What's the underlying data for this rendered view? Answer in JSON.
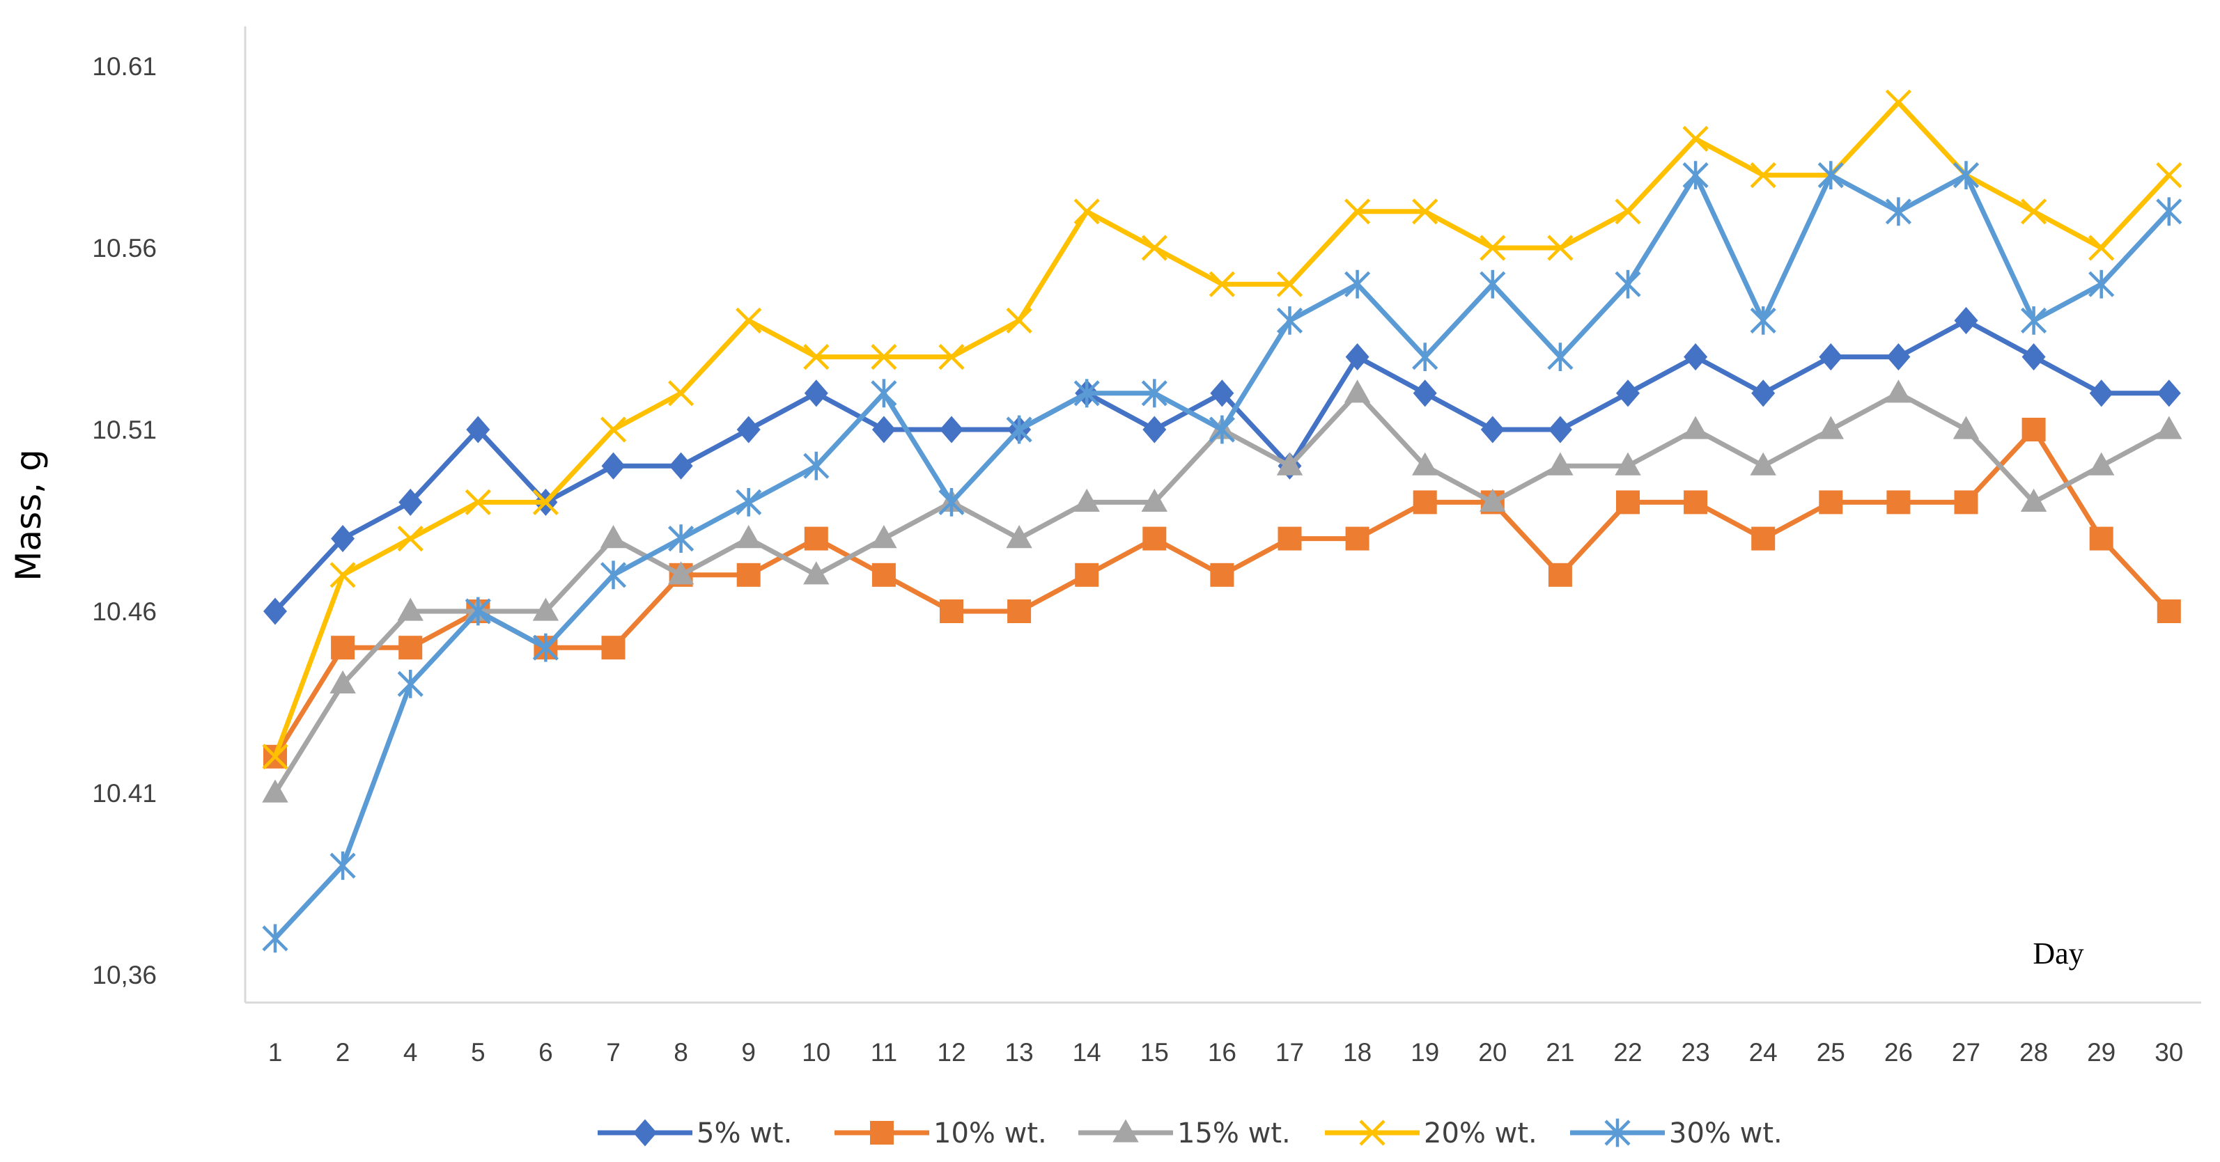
{
  "chart_data": {
    "type": "line",
    "title": "",
    "xlabel": "Day",
    "ylabel": "Mass, g",
    "categories": [
      "1",
      "2",
      "4",
      "5",
      "6",
      "7",
      "8",
      "9",
      "10",
      "11",
      "12",
      "13",
      "14",
      "15",
      "16",
      "17",
      "18",
      "19",
      "20",
      "21",
      "22",
      "23",
      "24",
      "25",
      "26",
      "27",
      "28",
      "29",
      "30"
    ],
    "y_ticks": [
      10.36,
      10.41,
      10.46,
      10.51,
      10.56,
      10.61
    ],
    "y_tick_labels": [
      "10,36",
      "10.41",
      "10.46",
      "10.51",
      "10.56",
      "10.61"
    ],
    "ylim": [
      10.36,
      10.62
    ],
    "grid": false,
    "legend_position": "bottom",
    "series": [
      {
        "name": "5% wt.",
        "color": "#4472C4",
        "marker": "diamond",
        "values": [
          10.46,
          10.48,
          10.49,
          10.51,
          10.49,
          10.5,
          10.5,
          10.51,
          10.52,
          10.51,
          10.51,
          10.51,
          10.52,
          10.51,
          10.52,
          10.5,
          10.53,
          10.52,
          10.51,
          10.51,
          10.52,
          10.53,
          10.52,
          10.53,
          10.53,
          10.54,
          10.53,
          10.52,
          10.52
        ]
      },
      {
        "name": "10% wt.",
        "color": "#ED7D31",
        "marker": "square",
        "values": [
          10.42,
          10.45,
          10.45,
          10.46,
          10.45,
          10.45,
          10.47,
          10.47,
          10.48,
          10.47,
          10.46,
          10.46,
          10.47,
          10.48,
          10.47,
          10.48,
          10.48,
          10.49,
          10.49,
          10.47,
          10.49,
          10.49,
          10.48,
          10.49,
          10.49,
          10.49,
          10.51,
          10.48,
          10.46
        ]
      },
      {
        "name": "15% wt.",
        "color": "#A5A5A5",
        "marker": "triangle",
        "values": [
          10.41,
          10.44,
          10.46,
          10.46,
          10.46,
          10.48,
          10.47,
          10.48,
          10.47,
          10.48,
          10.49,
          10.48,
          10.49,
          10.49,
          10.51,
          10.5,
          10.52,
          10.5,
          10.49,
          10.5,
          10.5,
          10.51,
          10.5,
          10.51,
          10.52,
          10.51,
          10.49,
          10.5,
          10.51
        ]
      },
      {
        "name": "20% wt.",
        "color": "#FFC000",
        "marker": "x",
        "values": [
          10.42,
          10.47,
          10.48,
          10.49,
          10.49,
          10.51,
          10.52,
          10.54,
          10.53,
          10.53,
          10.53,
          10.54,
          10.57,
          10.56,
          10.55,
          10.55,
          10.57,
          10.57,
          10.56,
          10.56,
          10.57,
          10.59,
          10.58,
          10.58,
          10.6,
          10.58,
          10.57,
          10.56,
          10.58
        ]
      },
      {
        "name": "30% wt.",
        "color": "#5B9BD5",
        "marker": "star",
        "values": [
          10.37,
          10.39,
          10.44,
          10.46,
          10.45,
          10.47,
          10.48,
          10.49,
          10.5,
          10.52,
          10.49,
          10.51,
          10.52,
          10.52,
          10.51,
          10.54,
          10.55,
          10.53,
          10.55,
          10.53,
          10.55,
          10.58,
          10.54,
          10.58,
          10.57,
          10.58,
          10.54,
          10.55,
          10.57
        ]
      }
    ]
  }
}
